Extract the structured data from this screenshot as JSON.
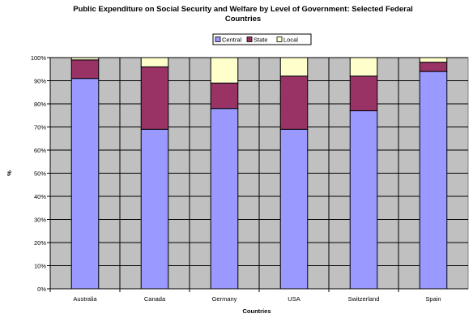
{
  "chart_data": {
    "type": "bar",
    "stacked": true,
    "title_line1": "Public Expenditure on Social Security and Welfare  by Level of Government: Selected Federal",
    "title_line2": "Countries",
    "xlabel": "Countries",
    "ylabel": "%",
    "ylim": [
      0,
      100
    ],
    "yticks": [
      "0%",
      "10%",
      "20%",
      "30%",
      "40%",
      "50%",
      "60%",
      "70%",
      "80%",
      "90%",
      "100%"
    ],
    "categories": [
      "Australia",
      "Canada",
      "Germany",
      "USA",
      "Switzerland",
      "Spain"
    ],
    "series": [
      {
        "name": "Central",
        "values": [
          91,
          69,
          78,
          69,
          77,
          94
        ]
      },
      {
        "name": "State",
        "values": [
          8,
          27,
          11,
          23,
          15,
          4
        ]
      },
      {
        "name": "Local",
        "values": [
          1,
          4,
          11,
          8,
          8,
          2
        ]
      }
    ],
    "grid": true,
    "legend_position": "top",
    "colors": {
      "Central": "#9999ff",
      "State": "#993366",
      "Local": "#ffffcc",
      "plot_background": "#c0c0c0",
      "gridline": "#000000"
    }
  }
}
